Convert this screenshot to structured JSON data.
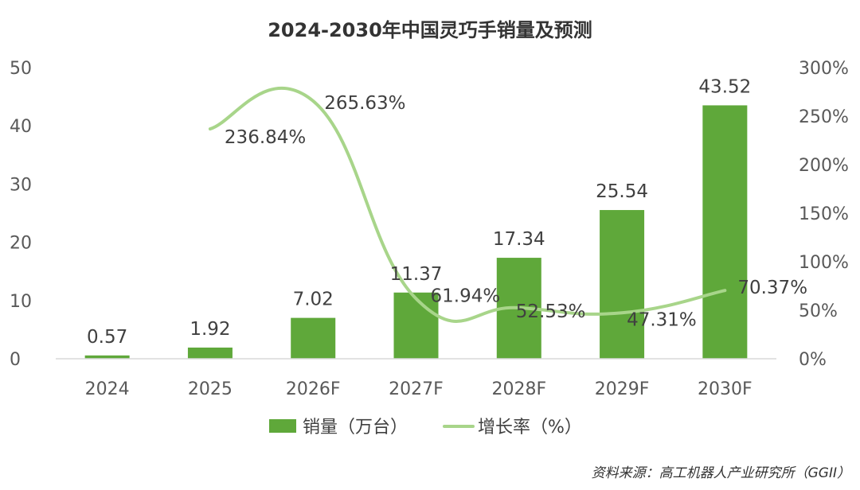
{
  "chart_data": {
    "type": "bar",
    "title": "2024-2030年中国灵巧手销量及预测",
    "categories": [
      "2024",
      "2025",
      "2026F",
      "2027F",
      "2028F",
      "2029F",
      "2030F"
    ],
    "series": [
      {
        "name": "销量（万台）",
        "type": "bar",
        "axis": "left",
        "values": [
          0.57,
          1.92,
          7.02,
          11.37,
          17.34,
          25.54,
          43.52
        ],
        "labels": [
          "0.57",
          "1.92",
          "7.02",
          "11.37",
          "17.34",
          "25.54",
          "43.52"
        ],
        "color": "#5fa83a"
      },
      {
        "name": "增长率（%）",
        "type": "line",
        "axis": "right",
        "values": [
          null,
          236.84,
          265.63,
          61.94,
          52.53,
          47.31,
          70.37
        ],
        "labels": [
          "",
          "236.84%",
          "265.63%",
          "61.94%",
          "52.53%",
          "47.31%",
          "70.37%"
        ],
        "color": "#a8d58a"
      }
    ],
    "yaxis_left": {
      "min": 0,
      "max": 50,
      "ticks": [
        "0",
        "10",
        "20",
        "30",
        "40",
        "50"
      ]
    },
    "yaxis_right": {
      "min": 0,
      "max": 300,
      "ticks": [
        "0%",
        "50%",
        "100%",
        "150%",
        "200%",
        "250%",
        "300%"
      ]
    },
    "legend_position": "bottom",
    "grid": false,
    "source": "资料来源：高工机器人产业研究所（GGII）"
  }
}
